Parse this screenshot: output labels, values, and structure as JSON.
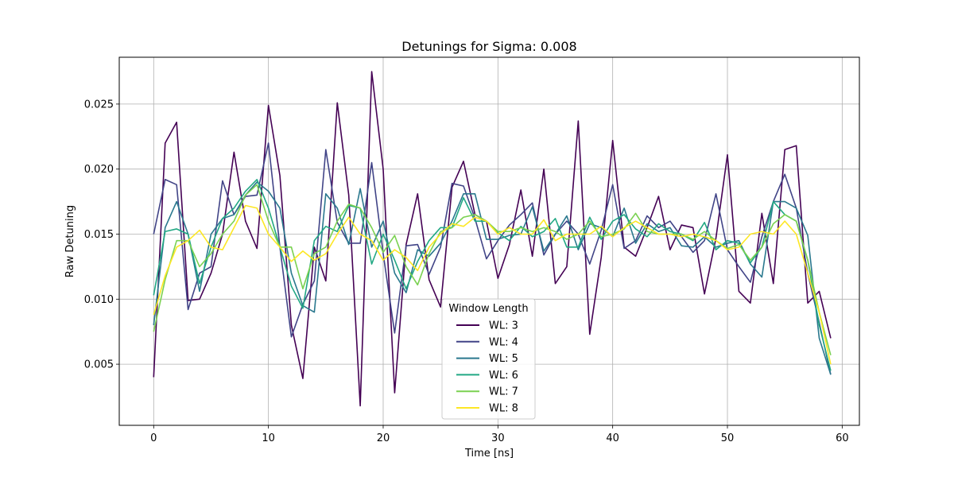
{
  "chart_data": {
    "type": "line",
    "title": "Detunings for Sigma: 0.008",
    "xlabel": "Time [ns]",
    "ylabel": "Raw Detuning",
    "xlim": [
      -3,
      61.5
    ],
    "ylim": [
      0.0003,
      0.0286
    ],
    "xticks": [
      0,
      10,
      20,
      30,
      40,
      50,
      60
    ],
    "yticks": [
      0.005,
      0.01,
      0.015,
      0.02,
      0.025
    ],
    "xtick_labels": [
      "0",
      "10",
      "20",
      "30",
      "40",
      "50",
      "60"
    ],
    "ytick_labels": [
      "0.005",
      "0.010",
      "0.015",
      "0.020",
      "0.025"
    ],
    "grid": true,
    "legend": {
      "title": "Window Length",
      "placement": "lower-center"
    },
    "series": [
      {
        "name": "WL: 3",
        "color": "#440154",
        "x": [
          0,
          1,
          2,
          3,
          4,
          5,
          6,
          7,
          8,
          9,
          10,
          11,
          12,
          13,
          14,
          15,
          16,
          17,
          18,
          19,
          20,
          21,
          22,
          23,
          24,
          25,
          26,
          27,
          28,
          29,
          30,
          31,
          32,
          33,
          34,
          35,
          36,
          37,
          38,
          39,
          40,
          41,
          42,
          43,
          44,
          45,
          46,
          47,
          48,
          49,
          50,
          51,
          52,
          53,
          54,
          55,
          56,
          57,
          58,
          59
        ],
        "values": [
          0.004,
          0.022,
          0.0236,
          0.0099,
          0.01,
          0.012,
          0.015,
          0.0213,
          0.016,
          0.0139,
          0.0249,
          0.0195,
          0.008,
          0.0039,
          0.014,
          0.0114,
          0.0251,
          0.018,
          0.0018,
          0.0275,
          0.02,
          0.0028,
          0.0142,
          0.0181,
          0.0115,
          0.0094,
          0.0186,
          0.0206,
          0.0165,
          0.016,
          0.0116,
          0.0142,
          0.0184,
          0.0133,
          0.02,
          0.0112,
          0.0125,
          0.0237,
          0.0073,
          0.0132,
          0.0222,
          0.014,
          0.0133,
          0.0155,
          0.0179,
          0.0138,
          0.0157,
          0.0155,
          0.0104,
          0.0147,
          0.0211,
          0.0106,
          0.0097,
          0.0166,
          0.0112,
          0.0215,
          0.0218,
          0.0097,
          0.0106,
          0.007
        ]
      },
      {
        "name": "WL: 4",
        "color": "#414487",
        "x": [
          0,
          1,
          2,
          3,
          4,
          5,
          6,
          7,
          8,
          9,
          10,
          11,
          12,
          13,
          14,
          15,
          16,
          17,
          18,
          19,
          20,
          21,
          22,
          23,
          24,
          25,
          26,
          27,
          28,
          29,
          30,
          31,
          32,
          33,
          34,
          35,
          36,
          37,
          38,
          39,
          40,
          41,
          42,
          43,
          44,
          45,
          46,
          47,
          48,
          49,
          50,
          51,
          52,
          53,
          54,
          55,
          56,
          57,
          58,
          59
        ],
        "values": [
          0.015,
          0.0192,
          0.0188,
          0.0092,
          0.012,
          0.0125,
          0.0191,
          0.0165,
          0.0179,
          0.018,
          0.022,
          0.014,
          0.0071,
          0.0096,
          0.0114,
          0.0215,
          0.0159,
          0.0143,
          0.0143,
          0.0205,
          0.0135,
          0.0074,
          0.0141,
          0.0142,
          0.0119,
          0.014,
          0.0189,
          0.0187,
          0.0162,
          0.0131,
          0.0145,
          0.0157,
          0.0165,
          0.0174,
          0.0134,
          0.015,
          0.016,
          0.015,
          0.0127,
          0.0153,
          0.0188,
          0.0139,
          0.0145,
          0.0164,
          0.0155,
          0.016,
          0.0148,
          0.0136,
          0.0145,
          0.0181,
          0.0138,
          0.0125,
          0.0113,
          0.0148,
          0.0175,
          0.0196,
          0.017,
          0.012,
          0.0082,
          0.0042
        ]
      },
      {
        "name": "WL: 5",
        "color": "#2a788e",
        "x": [
          0,
          1,
          2,
          3,
          4,
          5,
          6,
          7,
          8,
          9,
          10,
          11,
          12,
          13,
          14,
          15,
          16,
          17,
          18,
          19,
          20,
          21,
          22,
          23,
          24,
          25,
          26,
          27,
          28,
          29,
          30,
          31,
          32,
          33,
          34,
          35,
          36,
          37,
          38,
          39,
          40,
          41,
          42,
          43,
          44,
          45,
          46,
          47,
          48,
          49,
          50,
          51,
          52,
          53,
          54,
          55,
          56,
          57,
          58,
          59
        ],
        "values": [
          0.008,
          0.0155,
          0.0175,
          0.015,
          0.0106,
          0.015,
          0.0162,
          0.0165,
          0.018,
          0.019,
          0.0183,
          0.017,
          0.012,
          0.0095,
          0.009,
          0.0181,
          0.017,
          0.0142,
          0.0185,
          0.014,
          0.016,
          0.012,
          0.0105,
          0.0138,
          0.0133,
          0.0143,
          0.016,
          0.0181,
          0.0181,
          0.0146,
          0.0146,
          0.0149,
          0.015,
          0.0171,
          0.0137,
          0.015,
          0.0164,
          0.0138,
          0.0158,
          0.0155,
          0.0148,
          0.017,
          0.0143,
          0.0158,
          0.0152,
          0.0155,
          0.0141,
          0.014,
          0.0148,
          0.014,
          0.0143,
          0.0145,
          0.0127,
          0.0117,
          0.0175,
          0.0175,
          0.017,
          0.0149,
          0.007,
          0.0042
        ]
      },
      {
        "name": "WL: 6",
        "color": "#22a884",
        "x": [
          0,
          1,
          2,
          3,
          4,
          5,
          6,
          7,
          8,
          9,
          10,
          11,
          12,
          13,
          14,
          15,
          16,
          17,
          18,
          19,
          20,
          21,
          22,
          23,
          24,
          25,
          26,
          27,
          28,
          29,
          30,
          31,
          32,
          33,
          34,
          35,
          36,
          37,
          38,
          39,
          40,
          41,
          42,
          43,
          44,
          45,
          46,
          47,
          48,
          49,
          50,
          51,
          52,
          53,
          54,
          55,
          56,
          57,
          58,
          59
        ],
        "values": [
          0.0103,
          0.0152,
          0.0154,
          0.015,
          0.0112,
          0.014,
          0.0162,
          0.017,
          0.0183,
          0.0192,
          0.017,
          0.014,
          0.011,
          0.0093,
          0.0145,
          0.0156,
          0.0152,
          0.0172,
          0.017,
          0.0127,
          0.015,
          0.013,
          0.0108,
          0.0129,
          0.0145,
          0.0155,
          0.0155,
          0.0178,
          0.016,
          0.016,
          0.0151,
          0.0145,
          0.0156,
          0.0148,
          0.0152,
          0.0162,
          0.014,
          0.014,
          0.0163,
          0.0146,
          0.016,
          0.0165,
          0.0154,
          0.0148,
          0.0158,
          0.0152,
          0.015,
          0.0145,
          0.0159,
          0.0138,
          0.0145,
          0.0143,
          0.0128,
          0.014,
          0.0175,
          0.0165,
          0.016,
          0.013,
          0.008,
          0.0045
        ]
      },
      {
        "name": "WL: 7",
        "color": "#7ad151",
        "x": [
          0,
          1,
          2,
          3,
          4,
          5,
          6,
          7,
          8,
          9,
          10,
          11,
          12,
          13,
          14,
          15,
          16,
          17,
          18,
          19,
          20,
          21,
          22,
          23,
          24,
          25,
          26,
          27,
          28,
          29,
          30,
          31,
          32,
          33,
          34,
          35,
          36,
          37,
          38,
          39,
          40,
          41,
          42,
          43,
          44,
          45,
          46,
          47,
          48,
          49,
          50,
          51,
          52,
          53,
          54,
          55,
          56,
          57,
          58,
          59
        ],
        "values": [
          0.0075,
          0.0115,
          0.0145,
          0.0145,
          0.0125,
          0.0135,
          0.015,
          0.016,
          0.018,
          0.0188,
          0.016,
          0.014,
          0.014,
          0.0108,
          0.0135,
          0.014,
          0.016,
          0.0173,
          0.017,
          0.0155,
          0.0136,
          0.0149,
          0.0125,
          0.0111,
          0.0135,
          0.0152,
          0.0155,
          0.0163,
          0.0165,
          0.016,
          0.0152,
          0.0152,
          0.0155,
          0.0152,
          0.0155,
          0.0152,
          0.0146,
          0.015,
          0.016,
          0.0148,
          0.015,
          0.0154,
          0.0166,
          0.0152,
          0.015,
          0.015,
          0.015,
          0.0146,
          0.0152,
          0.0145,
          0.0139,
          0.0142,
          0.013,
          0.014,
          0.0158,
          0.0165,
          0.016,
          0.013,
          0.009,
          0.0057
        ]
      },
      {
        "name": "WL: 8",
        "color": "#fde725",
        "x": [
          0,
          1,
          2,
          3,
          4,
          5,
          6,
          7,
          8,
          9,
          10,
          11,
          12,
          13,
          14,
          15,
          16,
          17,
          18,
          19,
          20,
          21,
          22,
          23,
          24,
          25,
          26,
          27,
          28,
          29,
          30,
          31,
          32,
          33,
          34,
          35,
          36,
          37,
          38,
          39,
          40,
          41,
          42,
          43,
          44,
          45,
          46,
          47,
          48,
          49,
          50,
          51,
          52,
          53,
          54,
          55,
          56,
          57,
          58,
          59
        ],
        "values": [
          0.0088,
          0.0118,
          0.014,
          0.0145,
          0.0153,
          0.014,
          0.0138,
          0.0155,
          0.0172,
          0.017,
          0.015,
          0.014,
          0.0129,
          0.0137,
          0.013,
          0.0135,
          0.015,
          0.0163,
          0.015,
          0.0145,
          0.013,
          0.0138,
          0.0132,
          0.0122,
          0.014,
          0.015,
          0.0158,
          0.0156,
          0.0163,
          0.016,
          0.015,
          0.0155,
          0.015,
          0.015,
          0.0161,
          0.0145,
          0.015,
          0.015,
          0.015,
          0.0156,
          0.0148,
          0.0155,
          0.016,
          0.0155,
          0.015,
          0.015,
          0.0148,
          0.015,
          0.0148,
          0.0145,
          0.0138,
          0.014,
          0.015,
          0.0152,
          0.015,
          0.016,
          0.015,
          0.012,
          0.009,
          0.005
        ]
      }
    ]
  }
}
